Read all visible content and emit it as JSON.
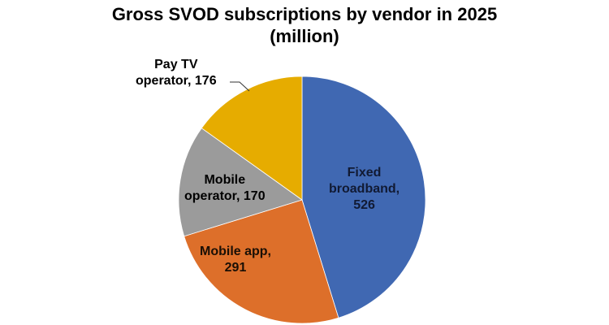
{
  "chart_data": {
    "type": "pie",
    "title": "Gross SVOD subscriptions by vendor in 2025",
    "subtitle": "(million)",
    "categories": [
      "Fixed broadband",
      "Mobile app",
      "Mobile operator",
      "Pay TV operator"
    ],
    "values": [
      526,
      291,
      170,
      176
    ],
    "colors": [
      "#4068b2",
      "#dd6f2a",
      "#9b9b9b",
      "#e6ac00"
    ],
    "start_angle_deg": 0,
    "direction": "clockwise",
    "legend": "none",
    "data_labels": [
      {
        "line1": "Fixed",
        "line2": "broadband,",
        "line3": "526"
      },
      {
        "line1": "Mobile app,",
        "line2": "291"
      },
      {
        "line1": "Mobile",
        "line2": "operator, 170"
      },
      {
        "line1": "Pay TV",
        "line2": "operator, 176"
      }
    ]
  }
}
